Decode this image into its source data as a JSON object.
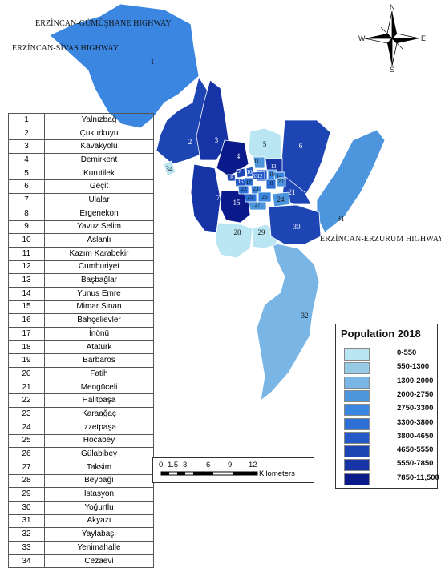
{
  "roads": [
    "ERZİNCAN-GÜMÜŞHANE HIGHWAY",
    "ERZİNCAN-SİVAS HIGHWAY",
    "ERZİNCAN-ERZURUM HIGHWAY"
  ],
  "compass": {
    "n": "N",
    "e": "E",
    "s": "S",
    "w": "W"
  },
  "neighborhoods": [
    {
      "id": "1",
      "name": "Yalnızbağ",
      "class": 4
    },
    {
      "id": "2",
      "name": "Çukurkuyu",
      "class": 7
    },
    {
      "id": "3",
      "name": "Kavakyolu",
      "class": 8
    },
    {
      "id": "4",
      "name": "Demirkent",
      "class": 9
    },
    {
      "id": "5",
      "name": "Kurutilek",
      "class": 0
    },
    {
      "id": "6",
      "name": "Geçit",
      "class": 7
    },
    {
      "id": "7",
      "name": "Ulalar",
      "class": 8
    },
    {
      "id": "8",
      "name": "Ergenekon",
      "class": 7
    },
    {
      "id": "9",
      "name": "Yavuz Selim",
      "class": 7
    },
    {
      "id": "10",
      "name": "Aslanlı",
      "class": 6
    },
    {
      "id": "11",
      "name": "Kazım Karabekir",
      "class": 3
    },
    {
      "id": "12",
      "name": "Cumhuriyet",
      "class": 6
    },
    {
      "id": "13",
      "name": "Başbağlar",
      "class": 8
    },
    {
      "id": "14",
      "name": "Yunus Emre",
      "class": 4
    },
    {
      "id": "15",
      "name": "Mimar Sinan",
      "class": 9
    },
    {
      "id": "16",
      "name": "Bahçelievler",
      "class": 6
    },
    {
      "id": "17",
      "name": "İnönü",
      "class": 5
    },
    {
      "id": "18",
      "name": "Atatürk",
      "class": 5
    },
    {
      "id": "19",
      "name": "Barbaros",
      "class": 4
    },
    {
      "id": "20",
      "name": "Fatih",
      "class": 3
    },
    {
      "id": "21",
      "name": "Mengüceli",
      "class": 7
    },
    {
      "id": "22",
      "name": "Halitpaşa",
      "class": 5
    },
    {
      "id": "23",
      "name": "Karaağaç",
      "class": 4
    },
    {
      "id": "24",
      "name": "İzzetpaşa",
      "class": 3
    },
    {
      "id": "25",
      "name": "Hocabey",
      "class": 5
    },
    {
      "id": "26",
      "name": "Gülabibey",
      "class": 4
    },
    {
      "id": "27",
      "name": "Taksim",
      "class": 3
    },
    {
      "id": "28",
      "name": "Beybağı",
      "class": 0
    },
    {
      "id": "29",
      "name": "İstasyon",
      "class": 0
    },
    {
      "id": "30",
      "name": "Yoğurtlu",
      "class": 7
    },
    {
      "id": "31",
      "name": "Akyazı",
      "class": 3
    },
    {
      "id": "32",
      "name": "Yaylabaşı",
      "class": 2
    },
    {
      "id": "33",
      "name": "Yenimahalle",
      "class": 6
    },
    {
      "id": "34",
      "name": "Cezaevi",
      "class": 0
    }
  ],
  "legend": {
    "title": "Population 2018",
    "classes": [
      {
        "label": "0-550",
        "color": "#b9e6f2"
      },
      {
        "label": "550-1300",
        "color": "#95cbe7"
      },
      {
        "label": "1300-2000",
        "color": "#79b6e6"
      },
      {
        "label": "2000-2750",
        "color": "#4d96de"
      },
      {
        "label": "2750-3300",
        "color": "#3b86e0"
      },
      {
        "label": "3300-3800",
        "color": "#2c70d6"
      },
      {
        "label": "3800-4650",
        "color": "#2459c6"
      },
      {
        "label": "4650-5550",
        "color": "#1d45b4"
      },
      {
        "label": "5550-7850",
        "color": "#1634a6"
      },
      {
        "label": "7850-11,500",
        "color": "#0a1a8a"
      }
    ]
  },
  "scale": {
    "ticks": [
      "0",
      "1.5",
      "3",
      "6",
      "9",
      "12"
    ],
    "unit": "Kilometers"
  }
}
